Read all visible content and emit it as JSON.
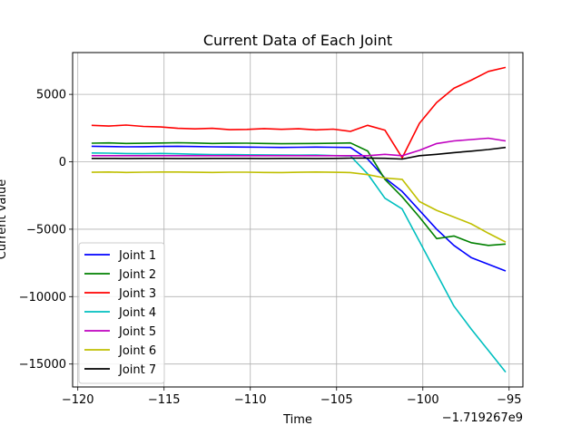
{
  "chart_data": {
    "type": "line",
    "title": "Current Data of Each Joint",
    "xlabel": "Time",
    "ylabel": "Current value",
    "x_offset_label": "−1.719267e9",
    "xlim": [
      -120.3,
      -94.2
    ],
    "ylim": [
      -16700,
      8100
    ],
    "xticks": [
      -120,
      -115,
      -110,
      -105,
      -100,
      -95
    ],
    "xtick_labels": [
      "−120",
      "−115",
      "−110",
      "−105",
      "−100",
      "−95"
    ],
    "yticks": [
      -15000,
      -10000,
      -5000,
      0,
      5000
    ],
    "ytick_labels": [
      "−15000",
      "−10000",
      "−5000",
      "0",
      "5000"
    ],
    "grid": true,
    "legend_position": "lower-left",
    "x": [
      -119.2,
      -118.2,
      -117.2,
      -116.2,
      -115.2,
      -114.2,
      -113.2,
      -112.2,
      -111.2,
      -110.2,
      -109.2,
      -108.2,
      -107.2,
      -106.2,
      -105.2,
      -104.2,
      -103.2,
      -102.2,
      -101.2,
      -100.2,
      -99.2,
      -98.2,
      -97.2,
      -96.2,
      -95.2
    ],
    "series": [
      {
        "name": "Joint 1",
        "color": "#0000ff",
        "values": [
          1150,
          1130,
          1110,
          1120,
          1140,
          1150,
          1130,
          1110,
          1100,
          1090,
          1080,
          1060,
          1080,
          1090,
          1080,
          1060,
          200,
          -1200,
          -2200,
          -3600,
          -5000,
          -6200,
          -7100,
          -7600,
          -8100
        ]
      },
      {
        "name": "Joint 2",
        "color": "#008000",
        "values": [
          1380,
          1400,
          1360,
          1370,
          1390,
          1410,
          1390,
          1360,
          1370,
          1380,
          1360,
          1340,
          1350,
          1360,
          1370,
          1400,
          800,
          -1300,
          -2600,
          -4100,
          -5700,
          -5500,
          -6000,
          -6200,
          -6100
        ]
      },
      {
        "name": "Joint 3",
        "color": "#ff0000",
        "values": [
          2700,
          2650,
          2720,
          2620,
          2580,
          2480,
          2440,
          2480,
          2380,
          2400,
          2460,
          2410,
          2450,
          2370,
          2420,
          2250,
          2700,
          2350,
          300,
          2850,
          4400,
          5450,
          6050,
          6700,
          7000
        ]
      },
      {
        "name": "Joint 4",
        "color": "#00bfbf",
        "values": [
          650,
          640,
          610,
          600,
          620,
          590,
          560,
          540,
          530,
          520,
          510,
          500,
          490,
          500,
          460,
          440,
          -900,
          -2700,
          -3500,
          -5900,
          -8300,
          -10700,
          -12400,
          -14000,
          -15600
        ]
      },
      {
        "name": "Joint 5",
        "color": "#bf00bf",
        "values": [
          450,
          450,
          450,
          450,
          450,
          450,
          450,
          450,
          450,
          450,
          450,
          450,
          450,
          450,
          450,
          450,
          450,
          550,
          450,
          850,
          1350,
          1550,
          1650,
          1750,
          1550
        ]
      },
      {
        "name": "Joint 6",
        "color": "#bfbf00",
        "values": [
          -780,
          -760,
          -790,
          -770,
          -760,
          -760,
          -780,
          -790,
          -770,
          -770,
          -790,
          -800,
          -780,
          -760,
          -780,
          -800,
          -950,
          -1200,
          -1300,
          -2950,
          -3600,
          -4100,
          -4600,
          -5300,
          -5950
        ]
      },
      {
        "name": "Joint 7",
        "color": "#000000",
        "values": [
          250,
          250,
          240,
          250,
          250,
          240,
          240,
          250,
          250,
          250,
          240,
          250,
          250,
          240,
          250,
          270,
          280,
          260,
          200,
          450,
          550,
          680,
          790,
          910,
          1060
        ]
      }
    ]
  }
}
